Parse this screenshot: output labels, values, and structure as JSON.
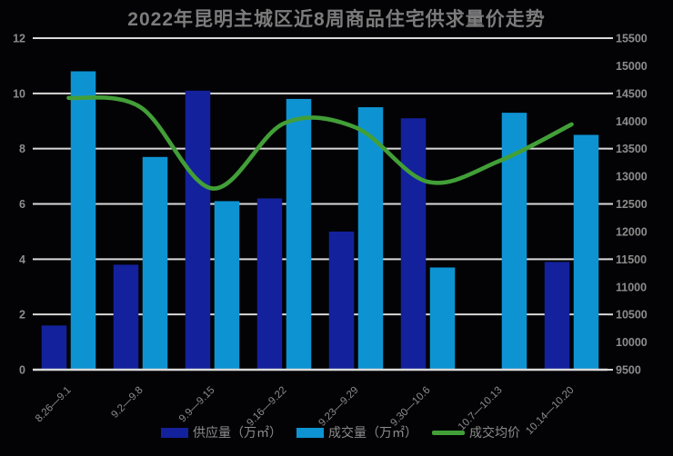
{
  "title": "2022年昆明主城区近8周商品住宅供求量价走势",
  "colors": {
    "background": "#030305",
    "title_text": "#7c7c7c",
    "axis_text": "#8c8c8c",
    "gridline": "#d9d9d9",
    "supply_bar": "#13219c",
    "volume_bar": "#0e93d2",
    "price_line": "#429f38"
  },
  "chart_data": {
    "type": "bar",
    "subtype": "combo-bar-line-dual-axis",
    "title": "2022年昆明主城区近8周商品住宅供求量价走势",
    "categories": [
      "8.26—9.1",
      "9.2—9.8",
      "9.9—9.15",
      "9.16—9.22",
      "9.23—9.29",
      "9.30—10.6",
      "10.7—10.13",
      "10.14—10.20"
    ],
    "series": [
      {
        "name": "供应量（万㎡）",
        "type": "bar",
        "axis": "left",
        "color_key": "supply_bar",
        "values": [
          1.6,
          3.8,
          10.1,
          6.2,
          5.0,
          9.1,
          0,
          3.9
        ]
      },
      {
        "name": "成交量（万㎡）",
        "type": "bar",
        "axis": "left",
        "color_key": "volume_bar",
        "values": [
          10.8,
          7.7,
          6.1,
          9.8,
          9.5,
          3.7,
          9.3,
          8.5
        ]
      },
      {
        "name": "成交均价",
        "type": "line",
        "axis": "right",
        "color_key": "price_line",
        "values": [
          14420,
          14250,
          12780,
          13960,
          13880,
          12900,
          13280,
          13940
        ]
      }
    ],
    "left_axis": {
      "min": 0,
      "max": 12,
      "step": 2
    },
    "right_axis": {
      "min": 9500,
      "max": 15500,
      "step": 500,
      "gridline_step": 1000
    },
    "grid": "horizontal gridlines aligned to left-axis ticks",
    "legend_position": "bottom",
    "x_label_rotation_deg": 45
  }
}
